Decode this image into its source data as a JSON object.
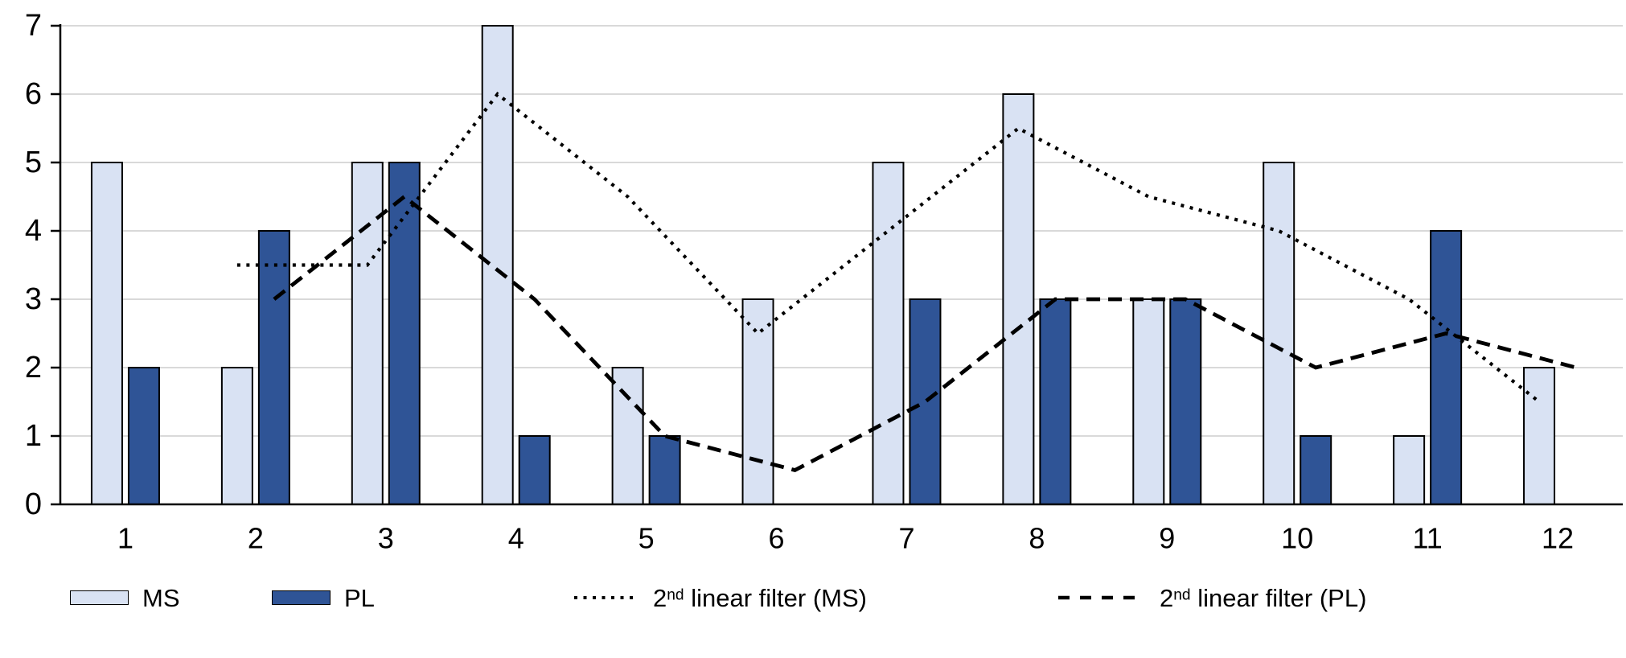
{
  "chart_data": {
    "type": "bar",
    "title": "",
    "xlabel": "",
    "ylabel": "",
    "categories": [
      1,
      2,
      3,
      4,
      5,
      6,
      7,
      8,
      9,
      10,
      11,
      12
    ],
    "ylim": [
      0,
      7
    ],
    "yticks": [
      0,
      1,
      2,
      3,
      4,
      5,
      6,
      7
    ],
    "grid": true,
    "gridline_color": "#d9d9d9",
    "axis_color": "#000000",
    "legend_position": "bottom",
    "series": [
      {
        "name": "MS",
        "type": "bar",
        "color": "#d9e2f3",
        "border": "#000000",
        "values": [
          5,
          2,
          5,
          7,
          2,
          3,
          5,
          6,
          3,
          5,
          1,
          2
        ]
      },
      {
        "name": "PL",
        "type": "bar",
        "color": "#2f5496",
        "border": "#000000",
        "values": [
          2,
          4,
          5,
          1,
          1,
          0,
          3,
          3,
          3,
          1,
          4,
          0
        ]
      },
      {
        "name": "2nd linear filter (MS)",
        "type": "line",
        "dash": "dotted",
        "color": "#000000",
        "align_to": "MS",
        "x": [
          2,
          3,
          4,
          5,
          6,
          7,
          8,
          9,
          10,
          11,
          12
        ],
        "values": [
          3.5,
          3.5,
          6,
          4.5,
          2.5,
          4,
          5.5,
          4.5,
          4,
          3,
          1.5
        ]
      },
      {
        "name": "2nd linear filter (PL)",
        "type": "line",
        "dash": "dashed",
        "color": "#000000",
        "align_to": "PL",
        "x": [
          2,
          3,
          4,
          5,
          6,
          7,
          8,
          9,
          10,
          11,
          12
        ],
        "values": [
          3,
          4.5,
          3,
          1,
          0.5,
          1.5,
          3,
          3,
          2,
          2.5,
          2
        ]
      }
    ]
  },
  "legend": {
    "ms_label": "MS",
    "pl_label": "PL",
    "filter_ms": {
      "pre": "2",
      "sup": "nd",
      "post": " linear filter (MS)"
    },
    "filter_pl": {
      "pre": "2",
      "sup": "nd",
      "post": " linear filter (PL)"
    }
  }
}
